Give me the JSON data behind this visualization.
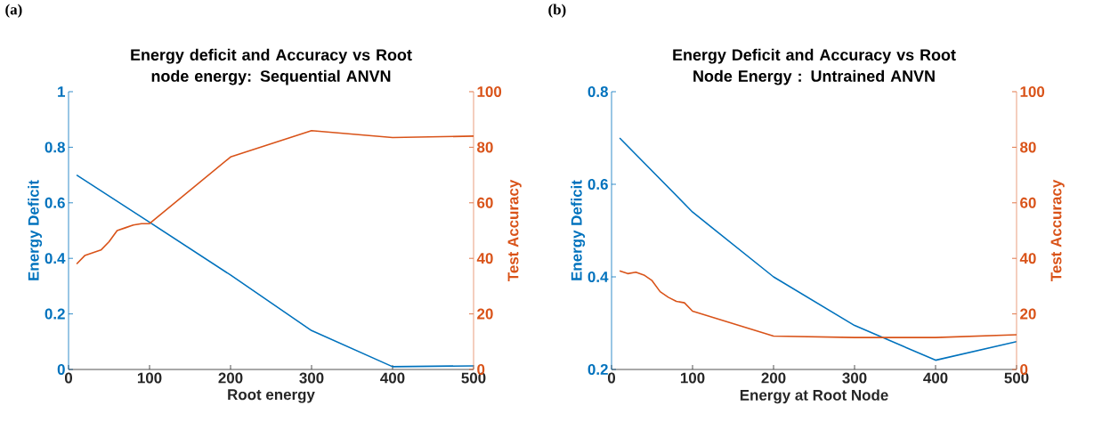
{
  "chart_data": [
    {
      "type": "line",
      "title": "Energy deficit and Accuracy vs Root node energy: Sequential ANVN",
      "xlabel": "Root energy",
      "ylabel": "Energy Deficit",
      "y2label": "Test Accuracy",
      "annotations": [
        "(a)"
      ],
      "xlim": [
        0,
        500
      ],
      "xticks": [
        0,
        100,
        200,
        300,
        400,
        500
      ],
      "ylim": [
        0,
        1
      ],
      "yticks": [
        0,
        0.2,
        0.4,
        0.6,
        0.8,
        1
      ],
      "y2lim": [
        0,
        100
      ],
      "y2ticks": [
        0,
        20,
        40,
        60,
        80,
        100
      ],
      "series": [
        {
          "color": "#0072bd",
          "x": [
            10,
            100,
            200,
            300,
            400,
            500
          ],
          "values": [
            0.7,
            0.53,
            0.34,
            0.14,
            0.01,
            0.013
          ]
        },
        {
          "color": "#d95319",
          "axis": "y2",
          "x": [
            10,
            20,
            30,
            40,
            50,
            60,
            70,
            80,
            90,
            100,
            200,
            300,
            400,
            500
          ],
          "values": [
            38,
            41,
            42,
            43,
            46,
            50,
            51,
            52,
            52.5,
            52.5,
            76.5,
            86,
            83.5,
            84
          ]
        }
      ]
    },
    {
      "type": "line",
      "title": "Energy Deficit and Accuracy vs Root Node Energy : Untrained ANVN",
      "xlabel": "Energy at Root Node",
      "ylabel": "Energy Deficit",
      "y2label": "Test Accuracy",
      "annotations": [
        "(b)"
      ],
      "xlim": [
        0,
        500
      ],
      "xticks": [
        0,
        100,
        200,
        300,
        400,
        500
      ],
      "ylim": [
        0.2,
        0.8
      ],
      "yticks": [
        0.2,
        0.4,
        0.6,
        0.8
      ],
      "y2lim": [
        0,
        100
      ],
      "y2ticks": [
        0,
        20,
        40,
        60,
        80,
        100
      ],
      "series": [
        {
          "color": "#0072bd",
          "x": [
            10,
            100,
            200,
            300,
            400,
            500
          ],
          "values": [
            0.7,
            0.54,
            0.4,
            0.295,
            0.22,
            0.26
          ]
        },
        {
          "color": "#d95319",
          "axis": "y2",
          "x": [
            10,
            20,
            30,
            40,
            50,
            60,
            70,
            80,
            90,
            100,
            200,
            300,
            400,
            500
          ],
          "values": [
            35.5,
            34.5,
            35,
            34,
            32,
            28,
            26,
            24.5,
            24,
            21,
            12,
            11.5,
            11.5,
            12.5
          ]
        }
      ]
    }
  ]
}
